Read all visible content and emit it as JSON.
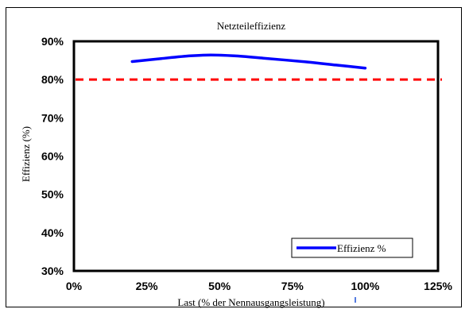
{
  "chart_data": {
    "type": "line",
    "title": "Netzteileffizienz",
    "xlabel": "Last (% der Nennausgangsleistung)",
    "ylabel": "Effizienz (%)",
    "xlim": [
      0,
      125
    ],
    "ylim": [
      30,
      90
    ],
    "x_ticks": [
      "0%",
      "25%",
      "50%",
      "75%",
      "100%",
      "125%"
    ],
    "y_ticks": [
      "30%",
      "40%",
      "50%",
      "60%",
      "70%",
      "80%",
      "90%"
    ],
    "series": [
      {
        "name": "Effizienz %",
        "color": "#0000ff",
        "points": [
          {
            "x": 20,
            "y": 84.7
          },
          {
            "x": 30,
            "y": 85.5
          },
          {
            "x": 40,
            "y": 86.2
          },
          {
            "x": 47,
            "y": 86.4
          },
          {
            "x": 55,
            "y": 86.2
          },
          {
            "x": 65,
            "y": 85.6
          },
          {
            "x": 80,
            "y": 84.6
          },
          {
            "x": 90,
            "y": 83.8
          },
          {
            "x": 100,
            "y": 83.0
          }
        ]
      }
    ],
    "reference_line": {
      "y": 80,
      "color": "#ff0000",
      "style": "dashed"
    },
    "legend_position": "bottom-right",
    "grid": false
  }
}
